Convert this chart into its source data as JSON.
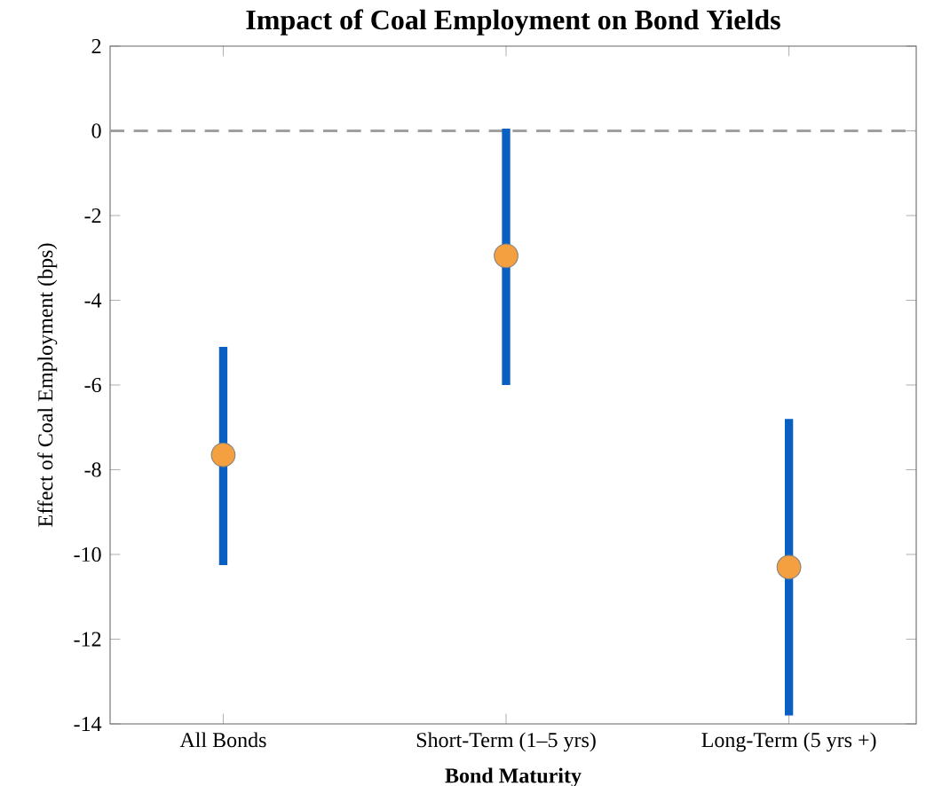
{
  "chart_data": {
    "type": "scatter",
    "title": "Impact of Coal Employment on Bond Yields",
    "xlabel": "Bond Maturity",
    "ylabel": "Effect of Coal Employment (bps)",
    "categories": [
      "All Bonds",
      "Short-Term (1–5 yrs)",
      "Long-Term (5 yrs +)"
    ],
    "series": [
      {
        "color": "#f5a040",
        "values": [
          -7.65,
          -2.95,
          -10.3
        ],
        "errors": [
          [
            -10.25,
            -5.1
          ],
          [
            -6.0,
            0.05
          ],
          [
            -13.8,
            -6.8
          ]
        ]
      }
    ],
    "ylim": [
      -14,
      2
    ],
    "yticks": [
      -14,
      -12,
      -10,
      -8,
      -6,
      -4,
      -2,
      0,
      2
    ],
    "marker": "circle",
    "grid": false,
    "ref_lines": [
      {
        "axis": "y",
        "value": 0,
        "color": "#a0a0a0",
        "line_style": "dashed"
      }
    ]
  }
}
